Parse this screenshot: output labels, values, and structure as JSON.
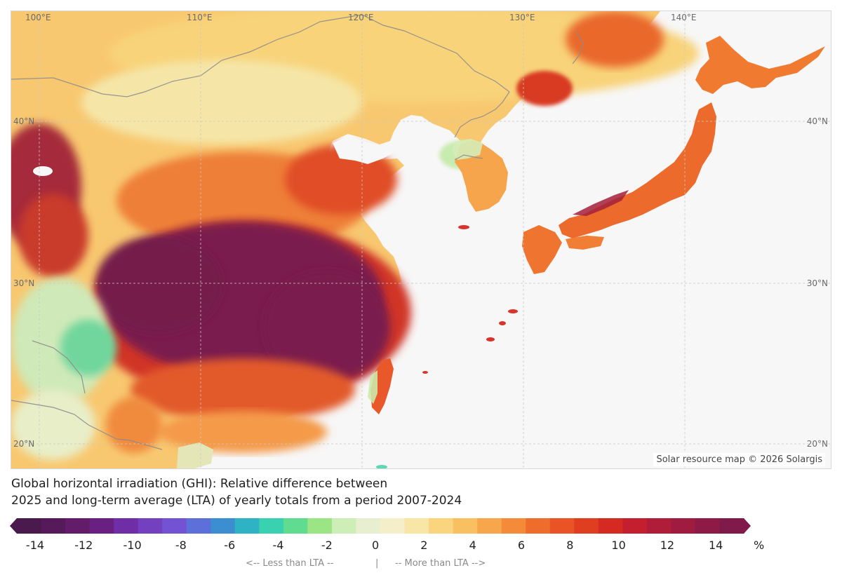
{
  "map": {
    "lon_labels": [
      "100°E",
      "110°E",
      "120°E",
      "130°E",
      "140°E"
    ],
    "lat_labels_left": [
      "40°N",
      "30°N",
      "20°N"
    ],
    "lat_labels_right": [
      "40°N",
      "30°N",
      "20°N"
    ],
    "attribution": "Solar resource map © 2026 Solargis",
    "colors": {
      "ocean": "#f7f7f7",
      "strong_positive": "#781c4f",
      "positive": "#e04a25",
      "mild_positive": "#f6a04a",
      "neutral": "#f8e9a8",
      "negative": "#7fdca0",
      "border": "#8c8c8c"
    }
  },
  "caption": {
    "line1": "Global horizontal irradiation (GHI): Relative difference between",
    "line2": "2025 and long-term average (LTA) of yearly totals from a period 2007-2024"
  },
  "legend": {
    "ticks": [
      "-14",
      "-12",
      "-10",
      "-8",
      "-6",
      "-4",
      "-2",
      "0",
      "2",
      "4",
      "6",
      "8",
      "10",
      "12",
      "14"
    ],
    "unit": "%",
    "less_hint": "<-- Less than LTA --",
    "separator": "|",
    "more_hint": "-- More than LTA -->",
    "colors": [
      "#4a1a4e",
      "#561a5a",
      "#621c69",
      "#6a2082",
      "#6f2da6",
      "#7340c0",
      "#7353d4",
      "#5d6fd8",
      "#3b8fd0",
      "#2fb2c4",
      "#3ad1b0",
      "#5fdc8f",
      "#9ce585",
      "#cdeeb6",
      "#e8efd0",
      "#f4efc8",
      "#f8e6a6",
      "#fad57e",
      "#f8c060",
      "#f7a64c",
      "#f38b3a",
      "#ef6d2c",
      "#e95325",
      "#e03e21",
      "#d42a22",
      "#c31f2f",
      "#b01d38",
      "#9f1b40",
      "#8e1a46",
      "#7f1a4b"
    ]
  }
}
